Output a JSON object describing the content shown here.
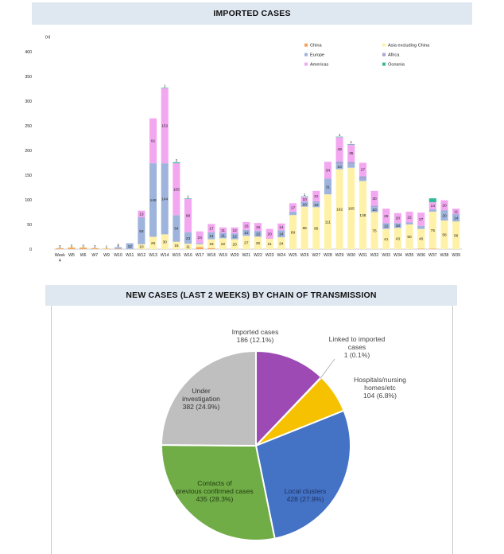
{
  "charts": {
    "bar_title": "IMPORTED CASES",
    "pie_title": "NEW CASES (LAST 2 WEEKS) BY CHAIN OF TRANSMISSION"
  },
  "chart_data": [
    {
      "type": "bar",
      "stacked": true,
      "title": "IMPORTED CASES",
      "ylabel": "(n)",
      "ylim": [
        0,
        400
      ],
      "yticks": [
        0,
        50,
        100,
        150,
        200,
        250,
        300,
        350,
        400
      ],
      "legend_position": "top-right",
      "categories": [
        "Week 4",
        "W5",
        "W6",
        "W7",
        "W9",
        "W10",
        "W11",
        "W12",
        "W13",
        "W14",
        "W15",
        "W16",
        "W17",
        "W18",
        "W19",
        "W20",
        "W21",
        "W22",
        "W23",
        "W24",
        "W25",
        "W26",
        "W27",
        "W28",
        "W29",
        "W30",
        "W31",
        "W32",
        "W33",
        "W34",
        "W35",
        "W36",
        "W37",
        "W38",
        "W39"
      ],
      "series": [
        {
          "name": "China",
          "color": "#f4a259",
          "values": [
            2,
            3,
            3,
            2,
            1,
            1,
            0,
            0,
            0,
            0,
            0,
            0,
            4,
            2,
            0,
            0,
            0,
            0,
            0,
            0,
            0,
            0,
            0,
            0,
            0,
            0,
            0,
            0,
            0,
            0,
            0,
            1,
            1,
            0,
            0
          ],
          "labels": [
            "2",
            "3",
            "3",
            "2",
            "1",
            "1",
            "",
            "",
            "",
            "",
            "",
            "",
            "4",
            "2",
            "",
            "",
            "",
            "",
            "",
            "",
            "",
            "",
            "",
            "",
            "",
            "",
            "",
            "",
            "",
            "",
            "",
            "1",
            "1",
            "",
            ""
          ]
        },
        {
          "name": "Asia excluding China",
          "color": "#fff2a8",
          "values": [
            0,
            1,
            1,
            0,
            1,
            0,
            0,
            10,
            25,
            30,
            15,
            11,
            6,
            18,
            22,
            20,
            27,
            25,
            21,
            24,
            69,
            86,
            85,
            111,
            162,
            165,
            138,
            75,
            41,
            43,
            50,
            40,
            75,
            58,
            56
          ],
          "labels": [
            "",
            "",
            "",
            "",
            "",
            "",
            "",
            "10",
            "25",
            "30",
            "15",
            "11",
            "6",
            "18",
            "22",
            "20",
            "27",
            "25",
            "21",
            "24",
            "69",
            "86",
            "85",
            "111",
            "162",
            "165",
            "138",
            "75",
            "41",
            "43",
            "50",
            "40",
            "75",
            "58",
            "56"
          ]
        },
        {
          "name": "Europe",
          "color": "#9fb4dc",
          "values": [
            0,
            0,
            0,
            0,
            0,
            3,
            12,
            53,
            149,
            144,
            54,
            23,
            2,
            14,
            11,
            12,
            12,
            12,
            0,
            14,
            7,
            10,
            10,
            31,
            10,
            7,
            4,
            10,
            12,
            10,
            4,
            6,
            4,
            20,
            14
          ],
          "labels": [
            "",
            "",
            "",
            "",
            "",
            "3",
            "12",
            "53",
            "149",
            "144",
            "54",
            "23",
            "2",
            "14",
            "11",
            "12",
            "12",
            "12",
            "",
            "14",
            "7",
            "10",
            "10",
            "31",
            "10",
            "7",
            "4",
            "10",
            "12",
            "10",
            "4",
            "6",
            "4",
            "20",
            "14"
          ]
        },
        {
          "name": "Africa",
          "color": "#a9a3d6",
          "values": [
            0,
            0,
            0,
            0,
            0,
            0,
            0,
            2,
            0,
            0,
            0,
            0,
            0,
            0,
            0,
            0,
            0,
            0,
            0,
            0,
            0,
            0,
            2,
            1,
            6,
            5,
            6,
            3,
            0,
            0,
            0,
            0,
            1,
            1,
            1
          ],
          "labels": [
            "",
            "",
            "",
            "",
            "",
            "",
            "",
            "2",
            "",
            "",
            "",
            "",
            "",
            "",
            "",
            "",
            "",
            "",
            "",
            "",
            "",
            "",
            "2",
            "1",
            "6",
            "5",
            "6",
            "3",
            "",
            "",
            "",
            "",
            "1",
            "1",
            "1"
          ]
        },
        {
          "name": "Americas",
          "color": "#f3a7f0",
          "values": [
            0,
            0,
            0,
            0,
            0,
            0,
            0,
            13,
            91,
            152,
            105,
            68,
            24,
            17,
            11,
            12,
            16,
            16,
            20,
            14,
            17,
            10,
            21,
            34,
            49,
            35,
            27,
            30,
            29,
            20,
            22,
            27,
            14,
            20,
            11
          ],
          "labels": [
            "",
            "",
            "",
            "",
            "",
            "",
            "",
            "13",
            "91",
            "152",
            "105",
            "68",
            "24",
            "17",
            "11",
            "12",
            "16",
            "16",
            "20",
            "14",
            "17",
            "10",
            "21",
            "34",
            "49",
            "35",
            "27",
            "30",
            "29",
            "20",
            "22",
            "27",
            "14",
            "20",
            "11"
          ]
        },
        {
          "name": "Oceania",
          "color": "#34b99a",
          "values": [
            0,
            0,
            0,
            0,
            0,
            0,
            0,
            0,
            0,
            1,
            2,
            1,
            0,
            0,
            0,
            0,
            0,
            0,
            0,
            0,
            0,
            1,
            0,
            0,
            1,
            1,
            0,
            0,
            0,
            0,
            0,
            0,
            8,
            0,
            0
          ],
          "labels": [
            "",
            "",
            "",
            "",
            "",
            "",
            "",
            "",
            "",
            "1",
            "2",
            "1",
            "",
            "",
            "",
            "",
            "",
            "",
            "",
            "",
            "",
            "1",
            "",
            "",
            "1",
            "1",
            "",
            "",
            "",
            "",
            "",
            "",
            "",
            "",
            ""
          ]
        }
      ]
    },
    {
      "type": "pie",
      "title": "NEW CASES (LAST 2 WEEKS) BY CHAIN OF TRANSMISSION",
      "slices": [
        {
          "label": "Imported cases",
          "value": 186,
          "text": "186 (12.1%)",
          "color": "#9e4ab4"
        },
        {
          "label": "Linked to imported cases",
          "value": 1,
          "text": "1 (0.1%)",
          "color": "#b7353a"
        },
        {
          "label": "Hospitals/nursing homes/etc",
          "value": 104,
          "text": "104 (6.8%)",
          "color": "#f6c100"
        },
        {
          "label": "Local clusters",
          "value": 428,
          "text": "428 (27.9%)",
          "color": "#4472c4"
        },
        {
          "label": "Contacts of previous confirmed cases",
          "value": 435,
          "text": "435 (28.3%)",
          "color": "#70ad47"
        },
        {
          "label": "Under investigation",
          "value": 382,
          "text": "382 (24.9%)",
          "color": "#bfbfbf"
        }
      ]
    }
  ]
}
